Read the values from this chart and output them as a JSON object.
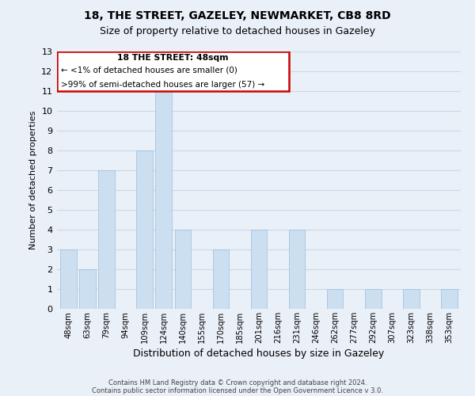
{
  "title": "18, THE STREET, GAZELEY, NEWMARKET, CB8 8RD",
  "subtitle": "Size of property relative to detached houses in Gazeley",
  "xlabel": "Distribution of detached houses by size in Gazeley",
  "ylabel": "Number of detached properties",
  "categories": [
    "48sqm",
    "63sqm",
    "79sqm",
    "94sqm",
    "109sqm",
    "124sqm",
    "140sqm",
    "155sqm",
    "170sqm",
    "185sqm",
    "201sqm",
    "216sqm",
    "231sqm",
    "246sqm",
    "262sqm",
    "277sqm",
    "292sqm",
    "307sqm",
    "323sqm",
    "338sqm",
    "353sqm"
  ],
  "values": [
    3,
    2,
    7,
    0,
    8,
    11,
    4,
    0,
    3,
    0,
    4,
    0,
    4,
    0,
    1,
    0,
    1,
    0,
    1,
    0,
    1
  ],
  "bar_color": "#ccdff0",
  "bar_edge_color": "#9bbcdb",
  "ylim": [
    0,
    13
  ],
  "yticks": [
    0,
    1,
    2,
    3,
    4,
    5,
    6,
    7,
    8,
    9,
    10,
    11,
    12,
    13
  ],
  "annotation_title": "18 THE STREET: 48sqm",
  "annotation_line1": "← <1% of detached houses are smaller (0)",
  "annotation_line2": ">99% of semi-detached houses are larger (57) →",
  "annotation_box_color": "#ffffff",
  "annotation_box_edgecolor": "#cc0000",
  "footer1": "Contains HM Land Registry data © Crown copyright and database right 2024.",
  "footer2": "Contains public sector information licensed under the Open Government Licence v 3.0.",
  "grid_color": "#c8d8e8",
  "background_color": "#eaf0f8",
  "title_fontsize": 10,
  "subtitle_fontsize": 9,
  "ylabel_fontsize": 8,
  "xlabel_fontsize": 9
}
